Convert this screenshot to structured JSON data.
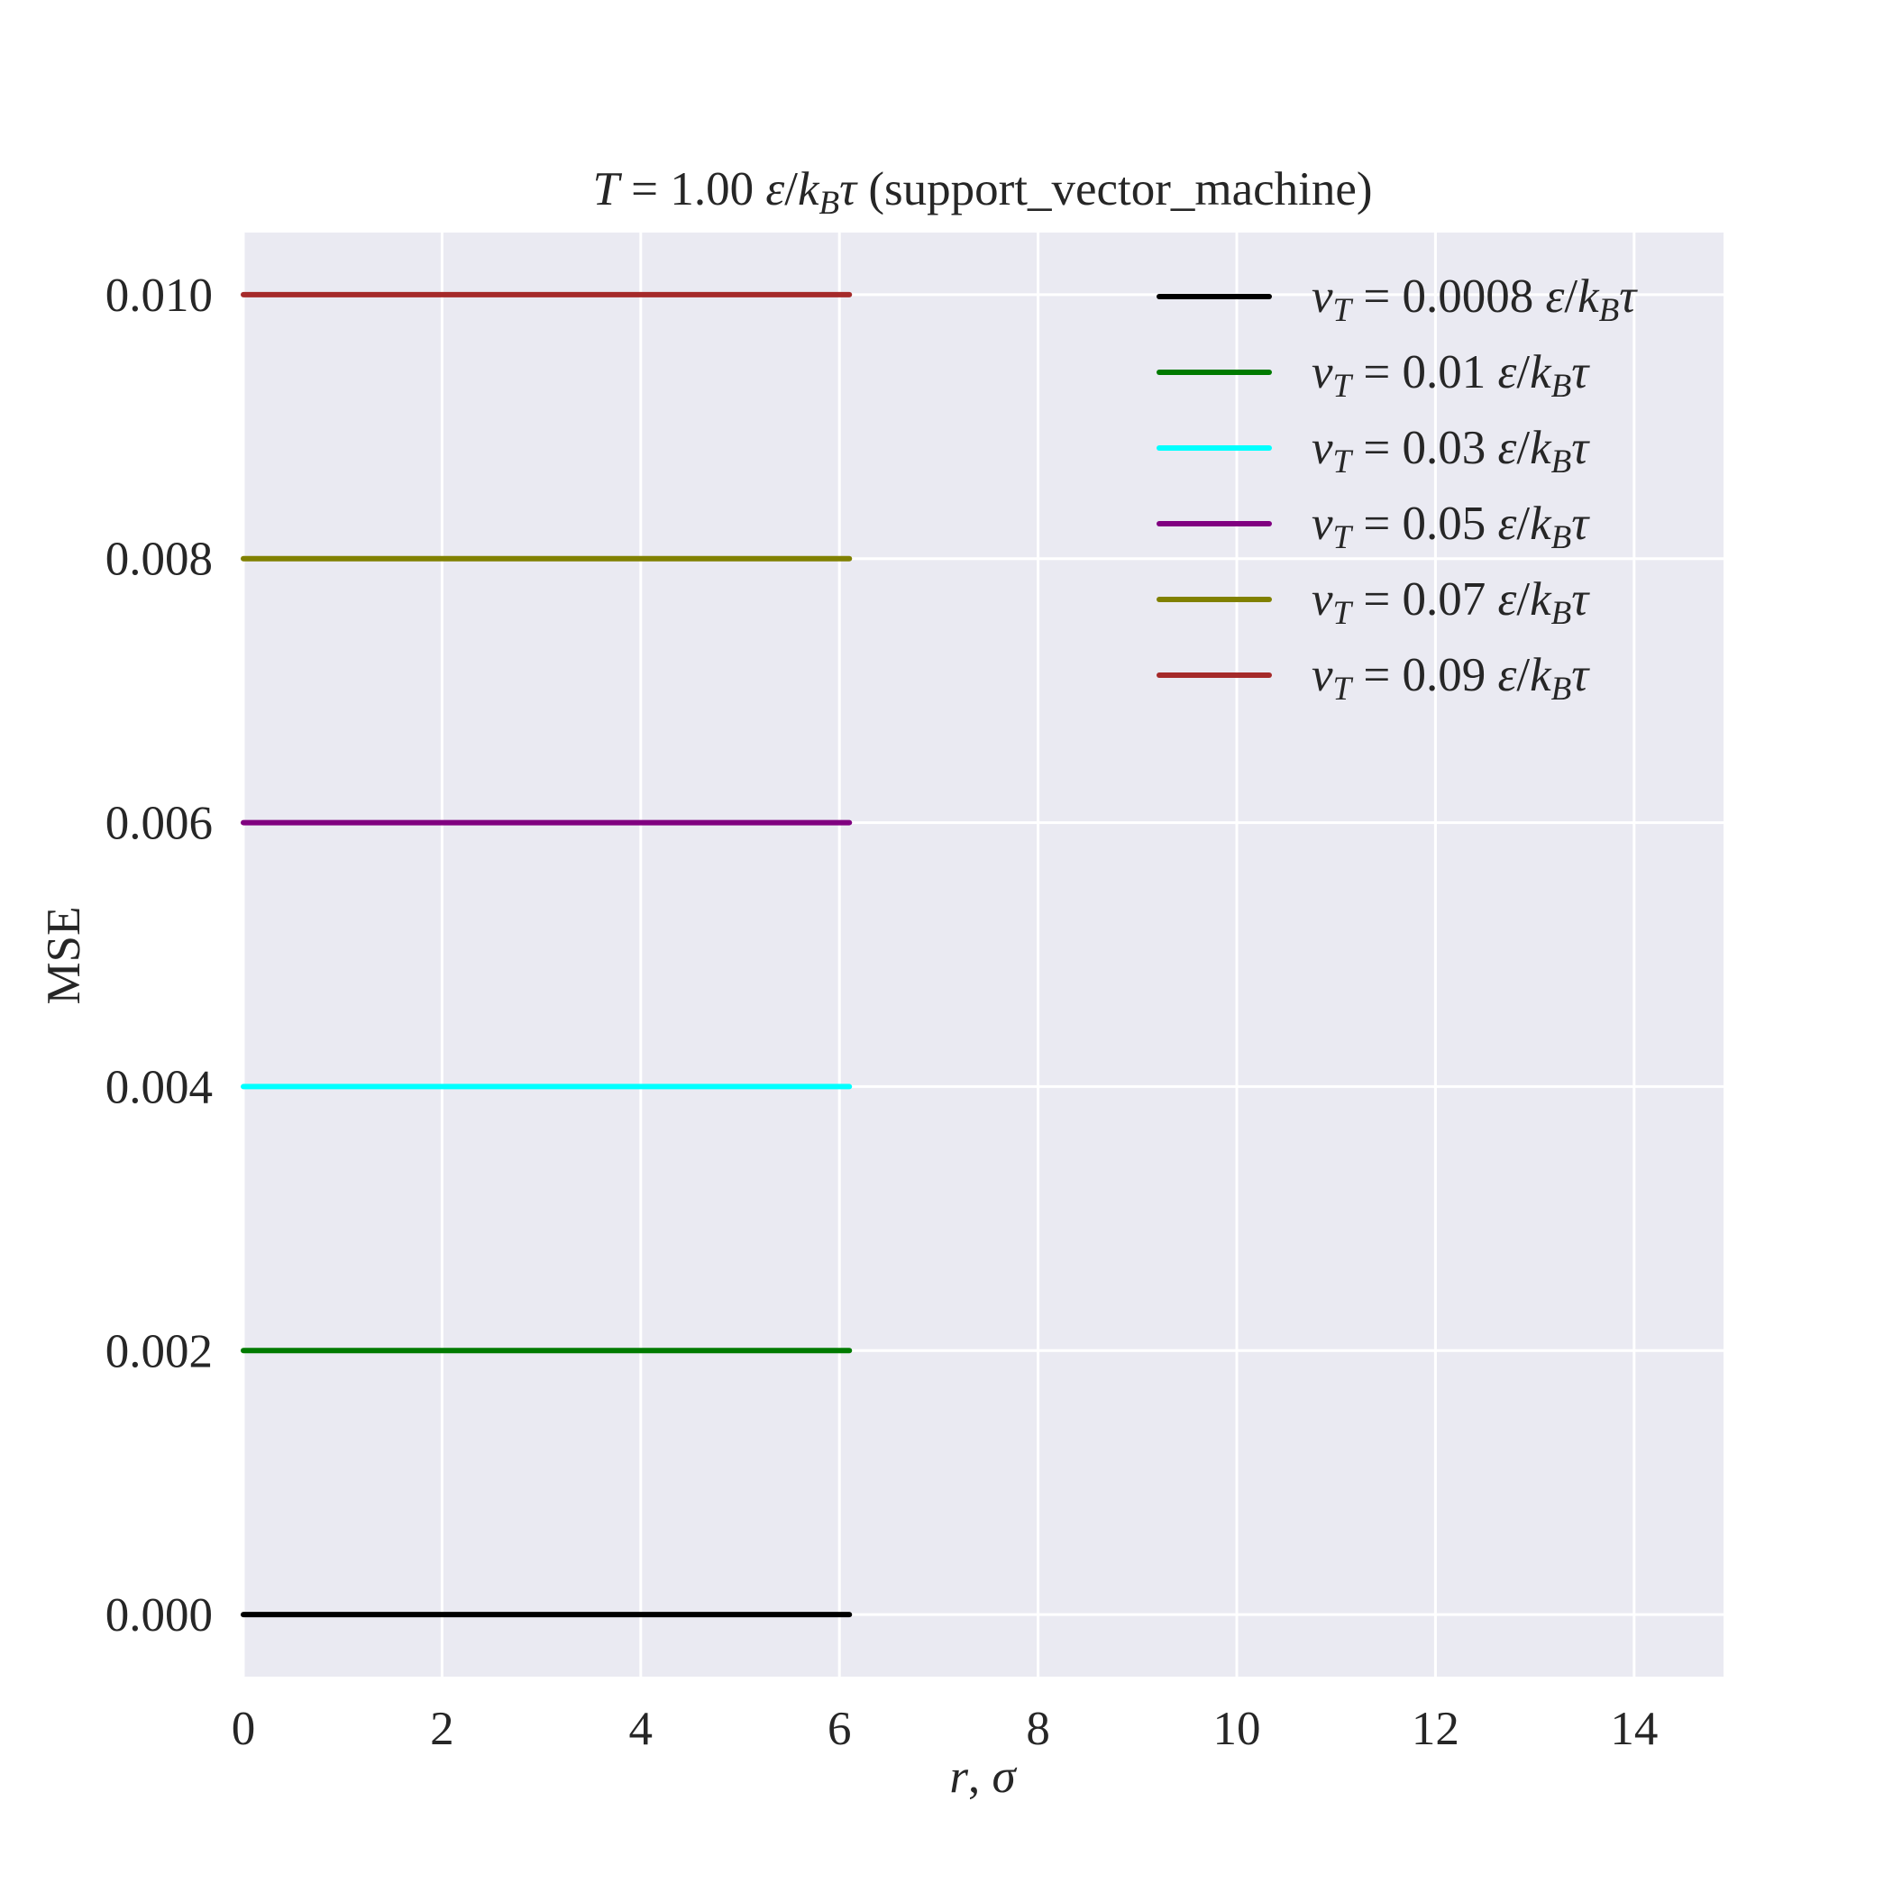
{
  "chart_data": {
    "type": "line",
    "title": {
      "T": "T",
      "eq": " = ",
      "value": "1.00 ",
      "eps": "ε",
      "slash": "/",
      "k": "k",
      "B": "B",
      "tau": "τ",
      "suffix": " (support_vector_machine)"
    },
    "xlabel": {
      "r": "r",
      "comma": ", ",
      "sigma": "σ"
    },
    "ylabel": "MSE",
    "xlim": [
      0,
      14.9
    ],
    "ylim": [
      -0.00047,
      0.01047
    ],
    "x_ticks": [
      0,
      2,
      4,
      6,
      8,
      10,
      12,
      14
    ],
    "x_tick_labels": [
      "0",
      "2",
      "4",
      "6",
      "8",
      "10",
      "12",
      "14"
    ],
    "y_ticks": [
      0.0,
      0.002,
      0.004,
      0.006,
      0.008,
      0.01
    ],
    "y_tick_labels": [
      "0.000",
      "0.002",
      "0.004",
      "0.006",
      "0.008",
      "0.010"
    ],
    "grid": true,
    "background": "#eaeaf2",
    "grid_color": "#ffffff",
    "legend_position": "top-right",
    "series": [
      {
        "v": "v",
        "sub": "T",
        "eq": " = ",
        "value": "0.0008",
        "unit_eps": "ε",
        "unit_slash": "/",
        "unit_k": "k",
        "unit_B": "B",
        "unit_tau": "τ",
        "color": "#000000",
        "x": [
          0,
          6.1
        ],
        "y": [
          0.0,
          0.0
        ]
      },
      {
        "v": "v",
        "sub": "T",
        "eq": " = ",
        "value": "0.01",
        "unit_eps": "ε",
        "unit_slash": "/",
        "unit_k": "k",
        "unit_B": "B",
        "unit_tau": "τ",
        "color": "#007a00",
        "x": [
          0,
          6.1
        ],
        "y": [
          0.002,
          0.002
        ]
      },
      {
        "v": "v",
        "sub": "T",
        "eq": " = ",
        "value": "0.03",
        "unit_eps": "ε",
        "unit_slash": "/",
        "unit_k": "k",
        "unit_B": "B",
        "unit_tau": "τ",
        "color": "#00ffff",
        "x": [
          0,
          6.1
        ],
        "y": [
          0.004,
          0.004
        ]
      },
      {
        "v": "v",
        "sub": "T",
        "eq": " = ",
        "value": "0.05",
        "unit_eps": "ε",
        "unit_slash": "/",
        "unit_k": "k",
        "unit_B": "B",
        "unit_tau": "τ",
        "color": "#800080",
        "x": [
          0,
          6.1
        ],
        "y": [
          0.006,
          0.006
        ]
      },
      {
        "v": "v",
        "sub": "T",
        "eq": " = ",
        "value": "0.07",
        "unit_eps": "ε",
        "unit_slash": "/",
        "unit_k": "k",
        "unit_B": "B",
        "unit_tau": "τ",
        "color": "#808000",
        "x": [
          0,
          6.1
        ],
        "y": [
          0.008,
          0.008
        ]
      },
      {
        "v": "v",
        "sub": "T",
        "eq": " = ",
        "value": "0.09",
        "unit_eps": "ε",
        "unit_slash": "/",
        "unit_k": "k",
        "unit_B": "B",
        "unit_tau": "τ",
        "color": "#a52a2a",
        "x": [
          0,
          6.1
        ],
        "y": [
          0.01,
          0.01
        ]
      }
    ]
  }
}
